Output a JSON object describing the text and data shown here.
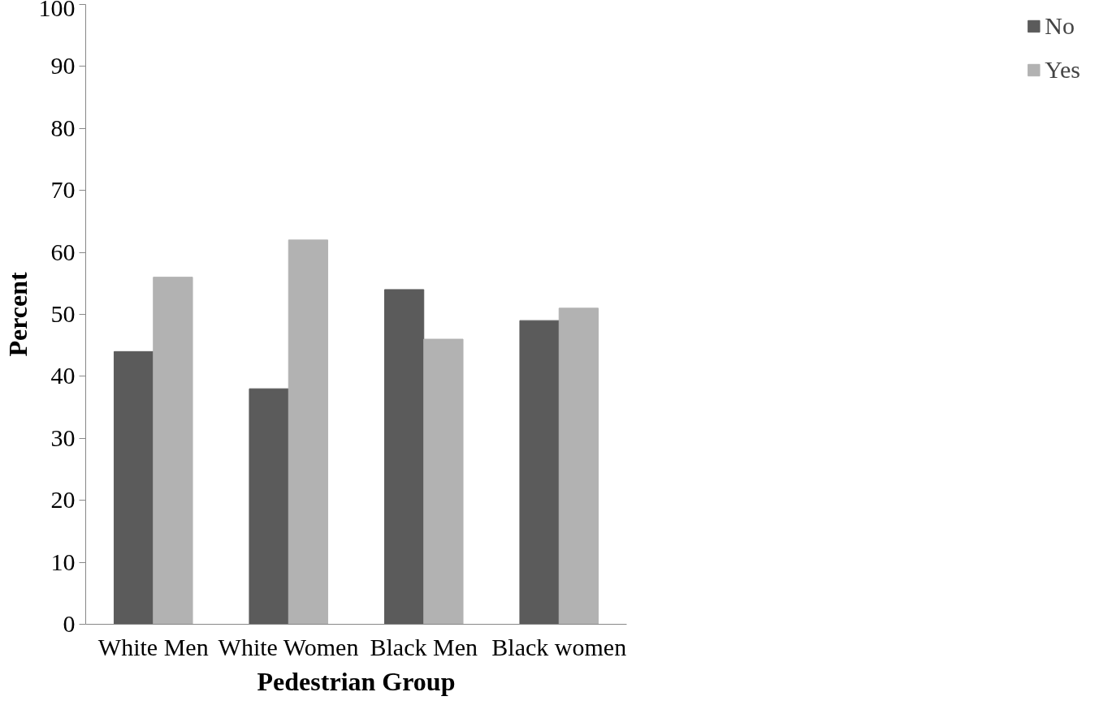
{
  "chart_data": {
    "type": "bar",
    "xlabel": "Pedestrian Group",
    "ylabel": "Percent",
    "categories": [
      "White Men",
      "White Women",
      "Black Men",
      "Black women"
    ],
    "series": [
      {
        "name": "No",
        "color": "#5b5b5b",
        "values": [
          44,
          38,
          54,
          49
        ]
      },
      {
        "name": "Yes",
        "color": "#b2b2b2",
        "values": [
          56,
          62,
          46,
          51
        ]
      }
    ],
    "ylim": [
      0,
      100
    ],
    "yticks": [
      0,
      10,
      20,
      30,
      40,
      50,
      60,
      70,
      80,
      90,
      100
    ],
    "grid": false,
    "legend": "right"
  }
}
